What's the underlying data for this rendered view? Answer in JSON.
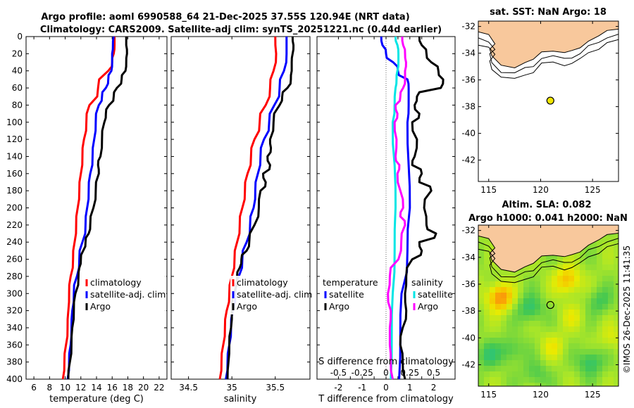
{
  "title": {
    "line1": "Argo profile: aoml 6990588_64 21-Dec-2025 37.55S 120.94E (NRT data)",
    "line2": "Climatology: CARS2009. Satellite-adj clim: synTS_20251221.nc (0.44d earlier)"
  },
  "watermark": "©IMOS 26-Dec-2025 11:41:35",
  "colors": {
    "red": "#ff0000",
    "blue": "#0000ff",
    "black": "#000000",
    "cyan": "#00e5e5",
    "magenta": "#ff00ff",
    "land": "#f8c89c",
    "zero_line": "#666666"
  },
  "chart_data": [
    {
      "type": "line",
      "id": "temperature",
      "xlabel": "temperature (deg C)",
      "ylabel": "",
      "xlim": [
        5,
        23
      ],
      "ylim": [
        400,
        0
      ],
      "xticks": [
        6,
        8,
        10,
        12,
        14,
        16,
        18,
        20,
        22
      ],
      "yticks": [
        0,
        20,
        40,
        60,
        80,
        100,
        120,
        140,
        160,
        180,
        200,
        220,
        240,
        260,
        280,
        300,
        320,
        340,
        360,
        380,
        400
      ],
      "legend": [
        "climatology",
        "satellite-adj. clim",
        "Argo"
      ],
      "series": [
        {
          "name": "climatology",
          "color": "red",
          "depth": [
            0,
            10,
            20,
            30,
            40,
            60,
            80,
            100,
            120,
            140,
            160,
            180,
            200,
            220,
            240,
            260,
            280,
            300,
            320,
            340,
            360,
            380,
            400
          ],
          "values": [
            16.3,
            16.3,
            16.2,
            16.0,
            15.5,
            14.2,
            13.1,
            12.7,
            12.4,
            12.2,
            12.0,
            11.8,
            11.6,
            11.4,
            11.2,
            11.0,
            10.7,
            10.5,
            10.4,
            10.3,
            10.1,
            9.9,
            9.7
          ]
        },
        {
          "name": "satellite-adj. clim",
          "color": "blue",
          "depth": [
            0,
            10,
            20,
            30,
            40,
            50,
            60,
            70,
            80,
            100,
            120,
            140,
            160,
            180,
            200,
            220,
            240,
            260,
            280,
            300,
            320,
            340,
            360,
            380,
            400
          ],
          "values": [
            16.2,
            16.1,
            16.0,
            16.0,
            15.9,
            15.5,
            15.2,
            14.7,
            14.3,
            13.9,
            13.7,
            13.5,
            13.2,
            13.0,
            12.8,
            12.6,
            12.2,
            11.8,
            11.5,
            11.1,
            10.9,
            10.8,
            10.7,
            10.5,
            10.3
          ]
        },
        {
          "name": "Argo",
          "color": "black",
          "depth": [
            0,
            10,
            20,
            30,
            40,
            50,
            60,
            70,
            80,
            90,
            100,
            120,
            140,
            150,
            160,
            180,
            200,
            220,
            230,
            240,
            250,
            260,
            270,
            280,
            300,
            320,
            340,
            360,
            380,
            400
          ],
          "values": [
            17.8,
            17.8,
            17.9,
            17.8,
            17.7,
            17.2,
            16.6,
            16.2,
            15.6,
            15.2,
            15.0,
            14.7,
            14.5,
            14.2,
            14.3,
            13.9,
            13.6,
            13.2,
            13.0,
            12.6,
            12.3,
            12.0,
            11.8,
            11.7,
            11.3,
            11.1,
            10.9,
            10.8,
            10.6,
            10.4
          ]
        }
      ]
    },
    {
      "type": "line",
      "id": "salinity",
      "xlabel": "salinity",
      "ylabel": "",
      "xlim": [
        34.3,
        35.9
      ],
      "xticks": [
        34.5,
        35,
        35.5
      ],
      "xticklabels": [
        "34.5",
        "35",
        "35.5"
      ],
      "legend": [
        "climatology",
        "satellite-adj. clim",
        "Argo"
      ],
      "series": [
        {
          "name": "climatology",
          "color": "red",
          "depth": [
            0,
            20,
            40,
            60,
            80,
            100,
            120,
            140,
            160,
            180,
            200,
            220,
            240,
            260,
            280,
            300,
            320,
            340,
            360,
            380,
            400
          ],
          "values": [
            35.5,
            35.51,
            35.48,
            35.44,
            35.39,
            35.32,
            35.26,
            35.22,
            35.18,
            35.15,
            35.12,
            35.09,
            35.06,
            35.03,
            35.0,
            34.97,
            34.94,
            34.92,
            34.9,
            34.88,
            34.86
          ]
        },
        {
          "name": "satellite-adj. clim",
          "color": "blue",
          "depth": [
            0,
            20,
            40,
            60,
            80,
            100,
            120,
            140,
            160,
            180,
            200,
            220,
            240,
            260,
            280,
            300,
            320,
            340,
            360,
            380,
            400
          ],
          "values": [
            35.63,
            35.63,
            35.6,
            35.55,
            35.49,
            35.43,
            35.37,
            35.33,
            35.3,
            35.27,
            35.25,
            35.21,
            35.17,
            35.12,
            35.08,
            35.04,
            35.01,
            34.99,
            34.97,
            34.95,
            34.93
          ]
        },
        {
          "name": "Argo",
          "color": "black",
          "depth": [
            0,
            10,
            20,
            30,
            40,
            50,
            60,
            70,
            80,
            100,
            120,
            130,
            140,
            150,
            160,
            170,
            180,
            200,
            220,
            240,
            250,
            260,
            270,
            280,
            300,
            320,
            340,
            360,
            380,
            400
          ],
          "values": [
            35.7,
            35.71,
            35.7,
            35.69,
            35.69,
            35.68,
            35.64,
            35.58,
            35.55,
            35.48,
            35.44,
            35.45,
            35.41,
            35.44,
            35.36,
            35.39,
            35.33,
            35.31,
            35.26,
            35.2,
            35.17,
            35.11,
            35.09,
            35.06,
            35.02,
            35.0,
            34.99,
            34.97,
            34.96,
            34.95
          ]
        }
      ]
    },
    {
      "type": "line",
      "id": "difference",
      "xlabel": "T difference from climatology",
      "x2label": "S difference from climatology",
      "xlim": [
        -2.9,
        2.9
      ],
      "xticks": [
        -2,
        -1.5,
        -1,
        -0.5,
        0,
        0.5,
        1,
        1.5,
        2
      ],
      "xticklabels": [
        "-2",
        "-1.5",
        "-1",
        "-0.5",
        "0",
        "0.5",
        "1",
        "1.5",
        "2"
      ],
      "x2lim": [
        -0.725,
        0.725
      ],
      "x2ticks": [
        -0.5,
        -0.25,
        0,
        0.25,
        0.5
      ],
      "x2ticklabels": [
        "-0.5",
        "-0.25",
        "0",
        "0.25",
        "0.5"
      ],
      "legend_left": {
        "title": "temperature",
        "items": [
          "satellite",
          "Argo"
        ]
      },
      "legend_right": {
        "title": "salinity",
        "items": [
          "satellite",
          "Argo"
        ]
      },
      "series": [
        {
          "name": "temperature satellite",
          "color": "blue",
          "axis": "T",
          "depth": [
            0,
            10,
            20,
            30,
            40,
            50,
            60,
            80,
            100,
            150,
            200,
            250,
            300,
            350,
            400
          ],
          "values": [
            -0.2,
            -0.15,
            0.0,
            0.3,
            0.5,
            0.9,
            0.95,
            0.95,
            0.9,
            0.95,
            1.0,
            0.9,
            0.65,
            0.6,
            0.55
          ]
        },
        {
          "name": "temperature Argo",
          "color": "black",
          "axis": "T",
          "depth": [
            0,
            10,
            20,
            30,
            40,
            50,
            60,
            70,
            80,
            90,
            100,
            120,
            140,
            150,
            160,
            170,
            180,
            200,
            220,
            230,
            240,
            250,
            260,
            280,
            300,
            320,
            340,
            360,
            380,
            400
          ],
          "values": [
            1.4,
            1.5,
            1.7,
            1.9,
            2.2,
            2.4,
            2.3,
            1.3,
            1.2,
            1.4,
            1.1,
            1.3,
            1.2,
            1.1,
            1.5,
            1.4,
            1.9,
            1.6,
            1.7,
            2.1,
            1.4,
            1.5,
            1.1,
            0.85,
            0.8,
            0.85,
            0.7,
            0.6,
            0.7,
            0.8
          ]
        },
        {
          "name": "salinity satellite",
          "color": "cyan",
          "axis": "S",
          "depth": [
            0,
            10,
            20,
            30,
            40,
            50,
            60,
            80,
            100,
            150,
            200,
            250,
            300,
            350,
            400
          ],
          "values": [
            0.1,
            0.12,
            0.13,
            0.13,
            0.12,
            0.11,
            0.1,
            0.09,
            0.07,
            0.09,
            0.1,
            0.09,
            0.07,
            0.06,
            0.05
          ]
        },
        {
          "name": "salinity Argo",
          "color": "magenta",
          "axis": "S",
          "depth": [
            0,
            10,
            20,
            30,
            40,
            50,
            60,
            70,
            80,
            90,
            100,
            120,
            140,
            150,
            160,
            180,
            200,
            210,
            220,
            240,
            260,
            280,
            300,
            320,
            340,
            360,
            380,
            400
          ],
          "values": [
            0.17,
            0.18,
            0.2,
            0.21,
            0.2,
            0.2,
            0.18,
            0.15,
            0.1,
            0.12,
            0.09,
            0.11,
            0.1,
            0.14,
            0.12,
            0.15,
            0.18,
            0.15,
            0.2,
            0.16,
            0.13,
            0.04,
            0.02,
            0.05,
            0.04,
            0.04,
            0.05,
            0.07
          ]
        }
      ]
    },
    {
      "type": "map",
      "id": "sst_map",
      "title": "sat. SST: NaN Argo: 18",
      "xlim": [
        114,
        127.5
      ],
      "ylim": [
        -43.6,
        -31.6
      ],
      "xticks": [
        115,
        120,
        125
      ],
      "yticks": [
        -32,
        -34,
        -36,
        -38,
        -40,
        -42
      ],
      "float": {
        "lon": 120.94,
        "lat": -37.55,
        "fill": "#f2e600"
      }
    },
    {
      "type": "heatmap",
      "id": "sla_map",
      "title1": "Altim. SLA: 0.082",
      "title2": "Argo h1000: 0.041 h2000: NaN",
      "xlim": [
        114,
        127.5
      ],
      "ylim": [
        -43.6,
        -31.6
      ],
      "xticks": [
        115,
        120,
        125
      ],
      "yticks": [
        -32,
        -34,
        -36,
        -38,
        -40,
        -42
      ],
      "float": {
        "lon": 120.94,
        "lat": -37.55
      },
      "anomalies": [
        {
          "lon": 116.1,
          "lat": -37.0,
          "amp": 1.0
        },
        {
          "lon": 122.6,
          "lat": -35.7,
          "amp": 0.75
        },
        {
          "lon": 119.0,
          "lat": -37.8,
          "amp": -0.55
        },
        {
          "lon": 124.8,
          "lat": -41.8,
          "amp": -0.55
        },
        {
          "lon": 117.2,
          "lat": -40.9,
          "amp": -0.4
        },
        {
          "lon": 121.2,
          "lat": -40.6,
          "amp": 0.35
        },
        {
          "lon": 125.7,
          "lat": -37.3,
          "amp": -0.4
        },
        {
          "lon": 114.9,
          "lat": -41.3,
          "amp": -0.45
        },
        {
          "lon": 123.1,
          "lat": -38.4,
          "amp": 0.3
        },
        {
          "lon": 119.5,
          "lat": -42.7,
          "amp": -0.35
        },
        {
          "lon": 126.8,
          "lat": -40.0,
          "amp": 0.3
        }
      ]
    }
  ]
}
